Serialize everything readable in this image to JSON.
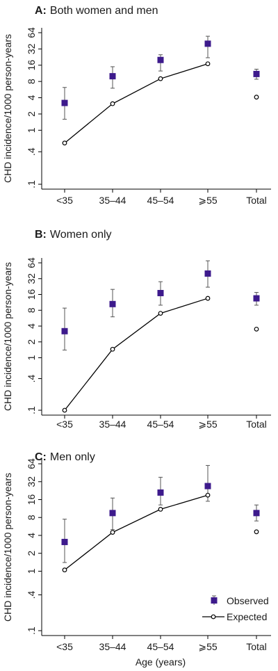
{
  "legend": {
    "observed_label": "Observed",
    "expected_label": "Expected"
  },
  "xlabel": "Age (years)",
  "colors": {
    "observed": "#3d1a8c",
    "expected": "#000000",
    "axis": "#000000"
  },
  "chart_data": [
    {
      "type": "scatter",
      "panel_letter": "A:",
      "title": "Both women and men",
      "ylabel": "CHD incidence/1000 person-years",
      "y_scale": "log",
      "yticks": [
        0.1,
        0.4,
        1,
        2,
        4,
        8,
        16,
        32,
        64
      ],
      "ytick_labels": [
        ".1",
        ".4",
        "1",
        "2",
        "4",
        "8",
        "16",
        "32",
        "64"
      ],
      "categories": [
        "<35",
        "35–44",
        "45–54",
        "⩾55",
        "Total"
      ],
      "series": [
        {
          "name": "Observed",
          "values": [
            3.2,
            10,
            20,
            40,
            11
          ],
          "ci_low": [
            1.6,
            6,
            12.5,
            22,
            8.8
          ],
          "ci_high": [
            6.2,
            15,
            25,
            55,
            13.5
          ]
        },
        {
          "name": "Expected",
          "values": [
            0.58,
            3.1,
            9,
            17,
            4.1
          ],
          "connected_categories": 4
        }
      ]
    },
    {
      "type": "scatter",
      "panel_letter": "B:",
      "title": "Women only",
      "ylabel": "CHD incidence/1000 person-years",
      "y_scale": "log",
      "yticks": [
        0.1,
        0.4,
        1,
        2,
        4,
        8,
        16,
        32,
        64
      ],
      "ytick_labels": [
        ".1",
        ".4",
        "1",
        "2",
        "4",
        "8",
        "16",
        "32",
        "64"
      ],
      "categories": [
        "<35",
        "35–44",
        "45–54",
        "⩾55",
        "Total"
      ],
      "series": [
        {
          "name": "Observed",
          "values": [
            3.2,
            10.5,
            17,
            40,
            13.5
          ],
          "ci_low": [
            1.4,
            6,
            10,
            22,
            10
          ],
          "ci_high": [
            8.8,
            20,
            28,
            70,
            17.5
          ]
        },
        {
          "name": "Expected",
          "values": [
            0.1,
            1.45,
            7,
            13.5,
            3.5
          ],
          "connected_categories": 4
        }
      ]
    },
    {
      "type": "scatter",
      "panel_letter": "C:",
      "title": "Men only",
      "ylabel": "CHD incidence/1000 person-years",
      "y_scale": "log",
      "yticks": [
        0.1,
        0.4,
        1,
        2,
        4,
        8,
        16,
        32,
        64
      ],
      "ytick_labels": [
        ".1",
        ".4",
        "1",
        "2",
        "4",
        "8",
        "16",
        "32",
        "64"
      ],
      "categories": [
        "<35",
        "35–44",
        "45–54",
        "⩾55",
        "Total"
      ],
      "series": [
        {
          "name": "Observed",
          "values": [
            3.1,
            9.5,
            21,
            27,
            9.5
          ],
          "ci_low": [
            1.4,
            5,
            13,
            15,
            7
          ],
          "ci_high": [
            7.5,
            17,
            38,
            60,
            13
          ]
        },
        {
          "name": "Expected",
          "values": [
            1.05,
            4.5,
            11,
            19,
            4.6
          ],
          "connected_categories": 4
        }
      ]
    }
  ]
}
